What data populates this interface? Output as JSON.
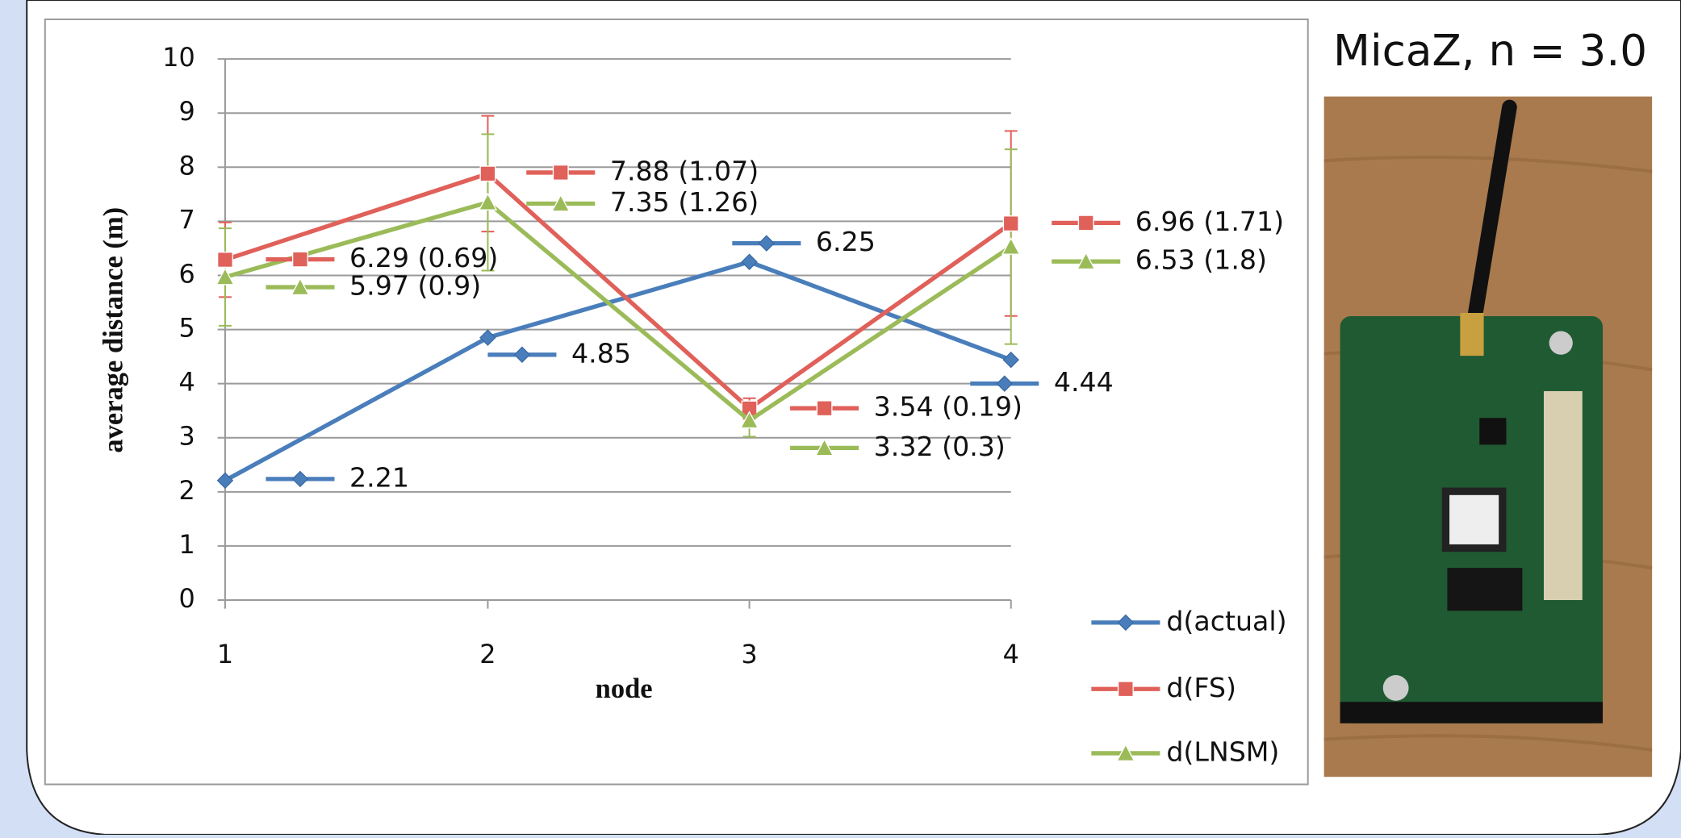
{
  "caption": "MicaZ, n = 3.0",
  "chart_data": {
    "type": "line",
    "x_label": "node",
    "y_label": "average distance (m)",
    "categories": [
      "1",
      "2",
      "3",
      "4"
    ],
    "series": [
      {
        "name": "d(actual)",
        "color": "#4a7ebb",
        "marker": "diamond",
        "values": [
          2.21,
          4.85,
          6.25,
          4.44
        ],
        "value_labels": [
          "2.21",
          "4.85",
          "6.25",
          "4.44"
        ]
      },
      {
        "name": "d(FS)",
        "color": "#e0605a",
        "marker": "square",
        "values": [
          6.29,
          7.88,
          3.54,
          6.96
        ],
        "errors": [
          0.69,
          1.07,
          0.19,
          1.71
        ],
        "value_labels": [
          "6.29 (0.69)",
          "7.88 (1.07)",
          "3.54 (0.19)",
          "6.96 (1.71)"
        ]
      },
      {
        "name": "d(LNSM)",
        "color": "#9bbb59",
        "marker": "triangle",
        "values": [
          5.97,
          7.35,
          3.32,
          6.53
        ],
        "errors": [
          0.9,
          1.26,
          0.3,
          1.8
        ],
        "value_labels": [
          "5.97 (0.9)",
          "7.35 (1.26)",
          "3.32 (0.3)",
          "6.53 (1.8)"
        ]
      }
    ],
    "ylim": [
      0,
      10
    ],
    "yticks": [
      0,
      1,
      2,
      3,
      4,
      5,
      6,
      7,
      8,
      9,
      10
    ],
    "grid": true,
    "legend": "bottom-right"
  }
}
